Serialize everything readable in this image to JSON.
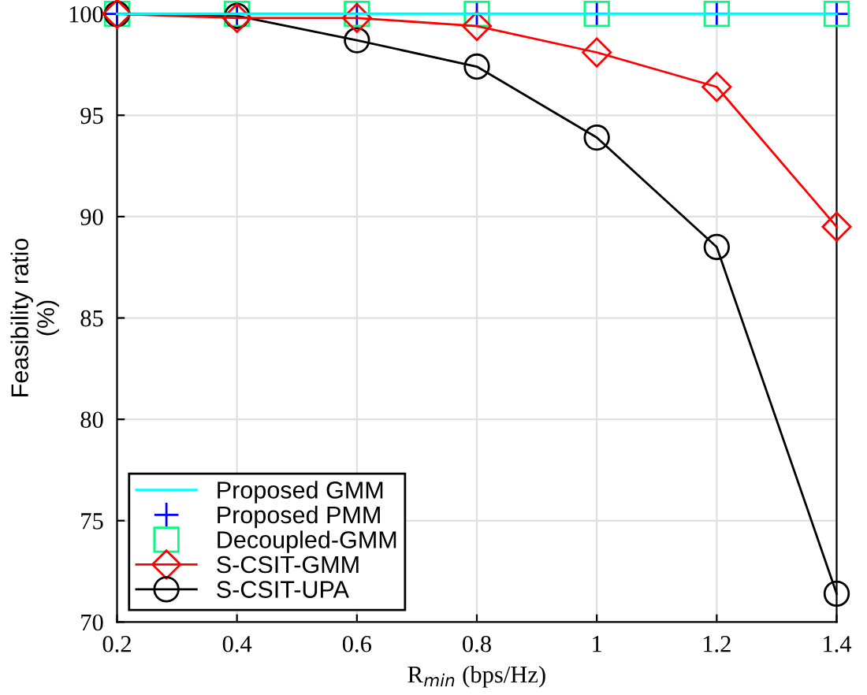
{
  "chart_data": {
    "type": "line",
    "xlabel": "R$_{min}$ (bps/Hz)",
    "ylabel": "Feasibility ratio\n(%)",
    "x": [
      0.2,
      0.4,
      0.6,
      0.8,
      1,
      1.2,
      1.4
    ],
    "series": [
      {
        "name": "Proposed GMM",
        "color": "#00ffff",
        "marker": "none",
        "values": [
          100,
          100,
          100,
          100,
          100,
          100,
          100
        ]
      },
      {
        "name": "Proposed PMM",
        "type": "scatter",
        "color": "#0000ff",
        "marker": "cross",
        "values": [
          100,
          100,
          100,
          100,
          100,
          100,
          100
        ]
      },
      {
        "name": "Decoupled-GMM",
        "type": "scatter",
        "color": "#00ff7f",
        "marker": "square",
        "values": [
          100,
          100,
          100,
          100,
          100,
          100,
          100
        ]
      },
      {
        "name": "S-CSIT-GMM",
        "color": "#ff0000",
        "marker": "diamond",
        "values": [
          100,
          99.8,
          99.8,
          99.4,
          98.1,
          96.4,
          89.5
        ]
      },
      {
        "name": "S-CSIT-UPA",
        "color": "#000000",
        "marker": "circle",
        "values": [
          100,
          99.9,
          98.7,
          97.4,
          93.9,
          88.5,
          71.4
        ]
      }
    ],
    "xlim": [
      0.2,
      1.4
    ],
    "xticks": [
      0.2,
      0.4,
      0.6,
      0.8,
      1,
      1.2,
      1.4
    ],
    "ylim": [
      70,
      100
    ],
    "yticks": [
      70,
      75,
      80,
      85,
      90,
      95,
      100
    ],
    "grid": true,
    "legend": "bottom left"
  }
}
